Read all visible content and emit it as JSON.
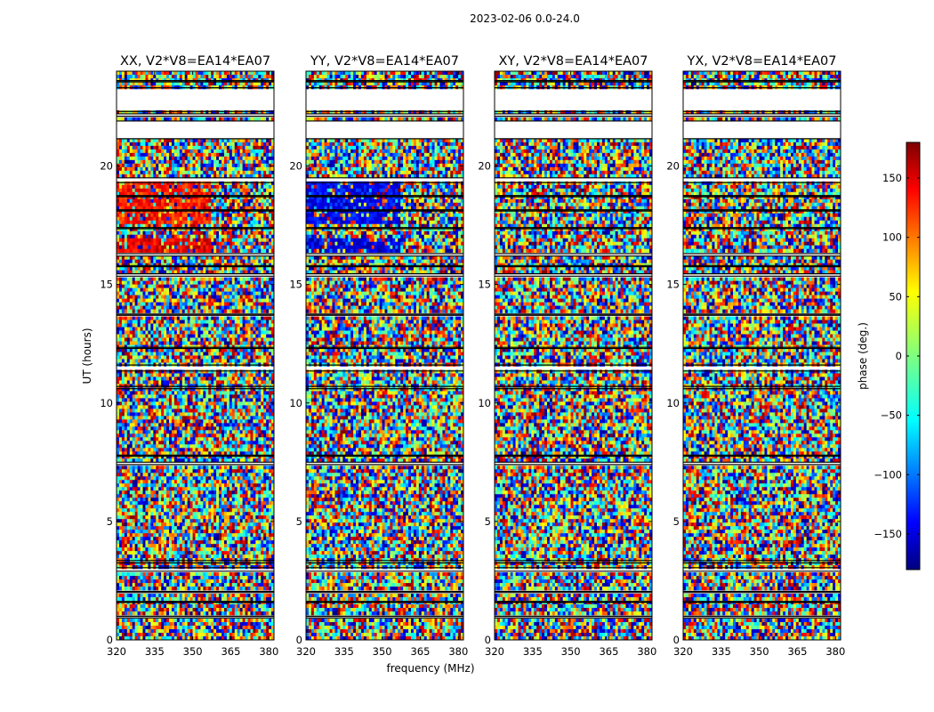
{
  "figure_title": "2023-02-06 0.0-24.0",
  "chart_data": {
    "type": "heatmap",
    "xlabel": "frequency (MHz)",
    "ylabel": "UT (hours)",
    "xlim": [
      320,
      382
    ],
    "ylim": [
      0,
      24
    ],
    "xticks": [
      320,
      335,
      350,
      365,
      380
    ],
    "yticks": [
      0,
      5,
      10,
      15,
      20
    ],
    "panels": [
      {
        "title": "XX, V2*V8=EA14*EA07",
        "pol": "XX"
      },
      {
        "title": "YY, V2*V8=EA14*EA07",
        "pol": "YY"
      },
      {
        "title": "XY, V2*V8=EA14*EA07",
        "pol": "XY"
      },
      {
        "title": "YX, V2*V8=EA14*EA07",
        "pol": "YX"
      }
    ],
    "gaps_hours": [
      [
        0.93,
        1.0
      ],
      [
        1.58,
        1.62
      ],
      [
        2.0,
        2.05
      ],
      [
        2.9,
        3.05
      ],
      [
        3.25,
        3.35
      ],
      [
        7.4,
        7.5
      ],
      [
        7.75,
        7.8
      ],
      [
        10.6,
        10.7
      ],
      [
        11.35,
        11.6
      ],
      [
        12.3,
        12.35
      ],
      [
        13.7,
        13.75
      ],
      [
        15.35,
        15.45
      ],
      [
        15.75,
        15.8
      ],
      [
        16.2,
        16.3
      ],
      [
        17.35,
        17.4
      ],
      [
        18.1,
        18.15
      ],
      [
        18.7,
        18.75
      ],
      [
        19.3,
        19.5
      ],
      [
        21.15,
        21.9
      ],
      [
        22.1,
        22.2
      ],
      [
        22.3,
        23.3
      ],
      [
        23.55,
        23.6
      ]
    ],
    "colorbar": {
      "label": "phase (deg.)",
      "range": [
        -180,
        180
      ],
      "ticks": [
        150,
        100,
        50,
        0,
        -50,
        -100,
        -150
      ],
      "colormap": "jet",
      "colors": [
        "#00007f",
        "#0000ff",
        "#007fff",
        "#00ffff",
        "#7fff7f",
        "#ffff00",
        "#ff7f00",
        "#ff0000",
        "#7f0000"
      ]
    }
  }
}
